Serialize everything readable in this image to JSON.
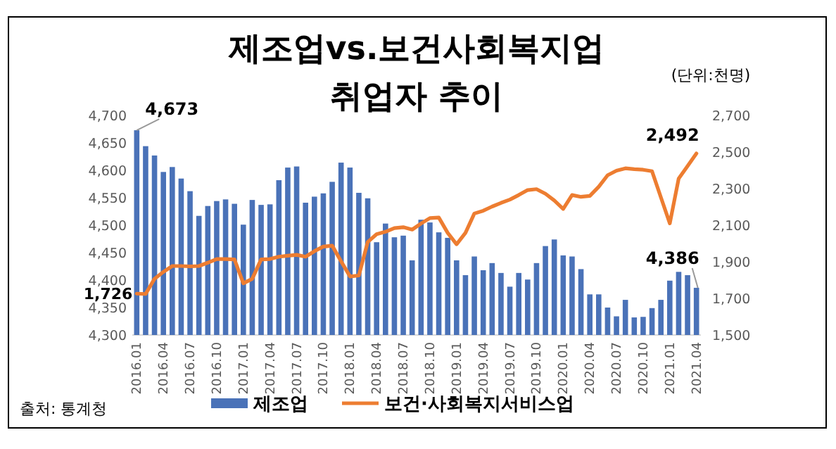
{
  "chart_data": {
    "type": "bar",
    "title": "제조업vs.보건사회복지업",
    "subtitle": "취업자 추이",
    "annotations": [
      "(단위:천명)",
      "출처: 통계청"
    ],
    "categories": [
      "2016.01",
      null,
      null,
      "2016.04",
      null,
      null,
      "2016.07",
      null,
      null,
      "2016.10",
      null,
      null,
      "2017.01",
      null,
      null,
      "2017.04",
      null,
      null,
      "2017.07",
      null,
      null,
      "2017.10",
      null,
      null,
      "2018.01",
      null,
      null,
      "2018.04",
      null,
      null,
      "2018.07",
      null,
      null,
      "2018.10",
      null,
      null,
      "2019.01",
      null,
      null,
      "2019.04",
      null,
      null,
      "2019.07",
      null,
      null,
      "2019.10",
      null,
      null,
      "2020.01",
      null,
      null,
      "2020.04",
      null,
      null,
      "2020.07",
      null,
      null,
      "2020.10",
      null,
      null,
      "2021.01",
      null,
      null,
      "2021.04"
    ],
    "series": [
      {
        "name": "제조업",
        "color": "#4a72b8",
        "values": [
          4673,
          4644,
          4627,
          4597,
          4606,
          4585,
          4562,
          4517,
          4535,
          4544,
          4547,
          4539,
          4501,
          4546,
          4537,
          4538,
          4582,
          4605,
          4607,
          4541,
          4552,
          4558,
          4579,
          4614,
          4605,
          4559,
          4549,
          4469,
          4503,
          4478,
          4481,
          4436,
          4510,
          4505,
          4487,
          4477,
          4436,
          4409,
          4443,
          4418,
          4431,
          4413,
          4388,
          4413,
          4401,
          4431,
          4462,
          4474,
          4445,
          4443,
          4420,
          4374,
          4374,
          4350,
          4334,
          4364,
          4332,
          4333,
          4349,
          4364,
          4399,
          4415,
          4409,
          4386
        ],
        "value_labels": [
          "4,673",
          null,
          null,
          null,
          null,
          null,
          null,
          null,
          null,
          null,
          null,
          null,
          null,
          null,
          null,
          null,
          null,
          null,
          null,
          null,
          null,
          null,
          null,
          null,
          null,
          null,
          null,
          null,
          null,
          null,
          null,
          null,
          null,
          null,
          null,
          null,
          null,
          null,
          null,
          null,
          null,
          null,
          null,
          null,
          null,
          null,
          null,
          null,
          null,
          null,
          null,
          null,
          null,
          null,
          null,
          null,
          null,
          null,
          null,
          null,
          null,
          null,
          null,
          "4,386"
        ]
      },
      {
        "name": "보건·사회복지서비스업",
        "type": "line",
        "axis": "y2",
        "color": "#ed7d31",
        "values": [
          1726,
          1724,
          1807,
          1845,
          1877,
          1877,
          1875,
          1877,
          1895,
          1915,
          1915,
          1913,
          1782,
          1807,
          1913,
          1915,
          1928,
          1933,
          1938,
          1928,
          1958,
          1983,
          1988,
          1903,
          1820,
          1825,
          2008,
          2051,
          2064,
          2084,
          2089,
          2076,
          2109,
          2139,
          2142,
          2058,
          1996,
          2058,
          2164,
          2179,
          2202,
          2222,
          2240,
          2265,
          2292,
          2297,
          2272,
          2235,
          2189,
          2265,
          2255,
          2260,
          2310,
          2373,
          2398,
          2411,
          2406,
          2403,
          2395,
          2252,
          2110,
          2355,
          2423,
          2492
        ],
        "value_labels": [
          "1,726",
          null,
          null,
          null,
          null,
          null,
          null,
          null,
          null,
          null,
          null,
          null,
          null,
          null,
          null,
          null,
          null,
          null,
          null,
          null,
          null,
          null,
          null,
          null,
          null,
          null,
          null,
          null,
          null,
          null,
          null,
          null,
          null,
          null,
          null,
          null,
          null,
          null,
          null,
          null,
          null,
          null,
          null,
          null,
          null,
          null,
          null,
          null,
          null,
          null,
          null,
          null,
          null,
          null,
          null,
          null,
          null,
          null,
          null,
          null,
          null,
          null,
          null,
          "2,492"
        ]
      }
    ],
    "ylim": [
      4300,
      4700
    ],
    "yticks": [
      {
        "value": 4300,
        "label": "4,300"
      },
      {
        "value": 4350,
        "label": "4,350"
      },
      {
        "value": 4400,
        "label": "4,400"
      },
      {
        "value": 4450,
        "label": "4,450"
      },
      {
        "value": 4500,
        "label": "4,500"
      },
      {
        "value": 4550,
        "label": "4,550"
      },
      {
        "value": 4600,
        "label": "4,600"
      },
      {
        "value": 4650,
        "label": "4,650"
      },
      {
        "value": 4700,
        "label": "4,700"
      }
    ],
    "y2lim": [
      1500,
      2700
    ],
    "y2ticks": [
      {
        "value": 1500,
        "label": "1,500"
      },
      {
        "value": 1700,
        "label": "1,700"
      },
      {
        "value": 1900,
        "label": "1,900"
      },
      {
        "value": 2100,
        "label": "2,100"
      },
      {
        "value": 2300,
        "label": "2,300"
      },
      {
        "value": 2500,
        "label": "2,500"
      },
      {
        "value": 2700,
        "label": "2,700"
      }
    ],
    "legend": "bottom",
    "grid": false
  }
}
